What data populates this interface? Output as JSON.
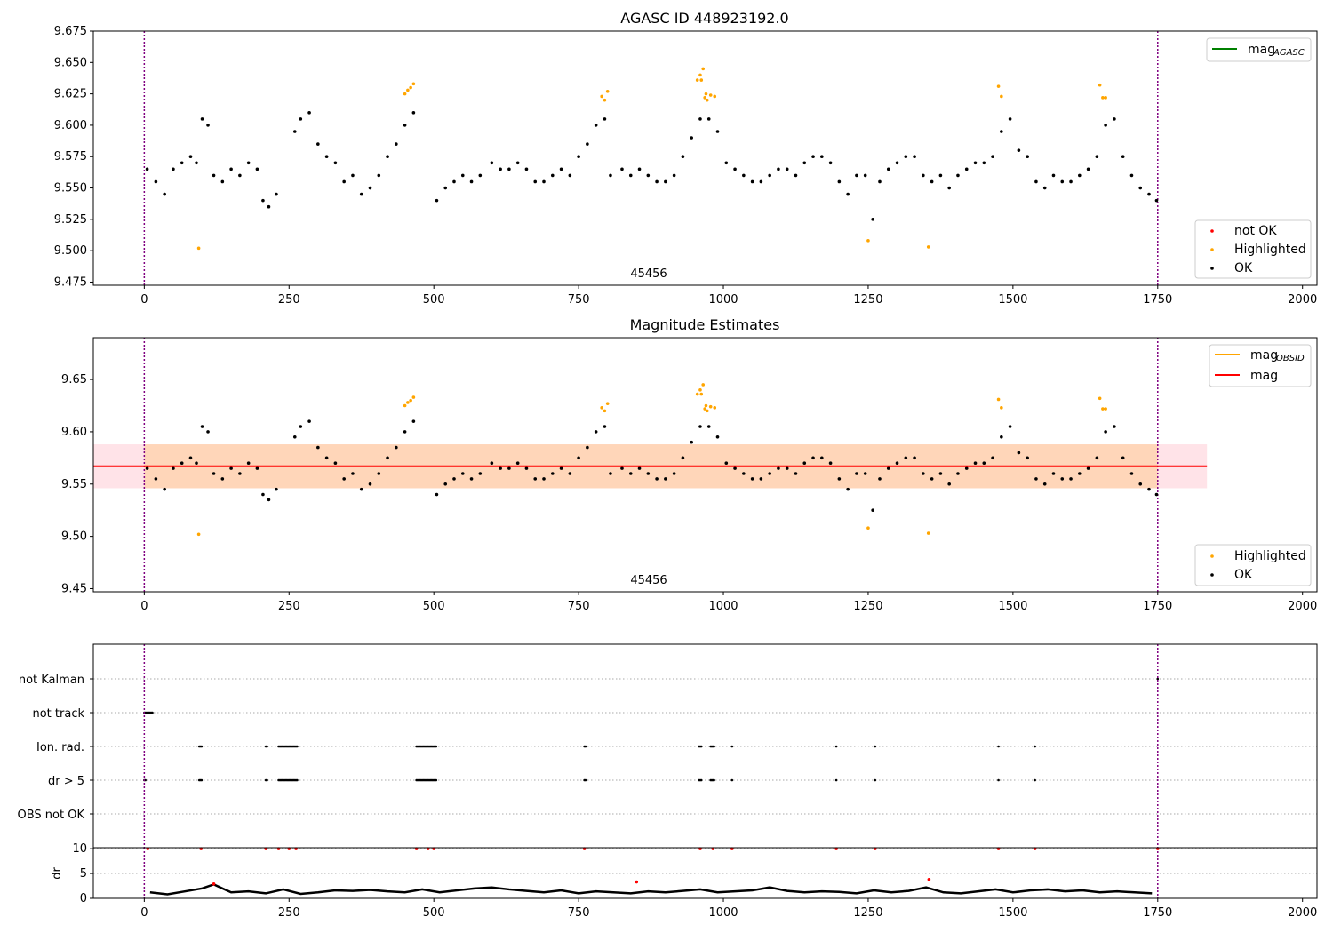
{
  "chart_data": [
    {
      "type": "scatter",
      "title": "AGASC ID 448923192.0",
      "xlim": [
        -88,
        2025
      ],
      "ylim": [
        9.4725,
        9.675
      ],
      "xticks": [
        0,
        250,
        500,
        750,
        1000,
        1250,
        1500,
        1750,
        2000
      ],
      "yticks": [
        9.475,
        9.5,
        9.525,
        9.55,
        9.575,
        9.6,
        9.625,
        9.65,
        9.675
      ],
      "ytick_labels": [
        "9.475",
        "9.500",
        "9.525",
        "9.550",
        "9.575",
        "9.600",
        "9.625",
        "9.650",
        "9.675"
      ],
      "vlines": [
        0,
        1750
      ],
      "annotation": {
        "text": "45456",
        "x": 875,
        "y": 9.48
      },
      "legend_upper": [
        {
          "label": "mag",
          "sub": "AGASC",
          "color": "#008000",
          "kind": "line"
        }
      ],
      "legend_lower": [
        {
          "label": "not OK",
          "color": "#ff0000",
          "kind": "dot"
        },
        {
          "label": "Highlighted",
          "color": "#ffa500",
          "kind": "dot"
        },
        {
          "label": "OK",
          "color": "#000000",
          "kind": "dot"
        }
      ],
      "series": [
        {
          "name": "Highlighted",
          "color": "#ffa500",
          "x": [
            94,
            450,
            455,
            460,
            465,
            790,
            795,
            800,
            955,
            960,
            962,
            965,
            968,
            970,
            972,
            978,
            985,
            1250,
            1354,
            1475,
            1480,
            1650,
            1655,
            1660
          ],
          "y": [
            9.502,
            9.625,
            9.628,
            9.63,
            9.633,
            9.623,
            9.62,
            9.627,
            9.636,
            9.64,
            9.636,
            9.645,
            9.622,
            9.625,
            9.62,
            9.624,
            9.623,
            9.508,
            9.503,
            9.631,
            9.623,
            9.632,
            9.622,
            9.622
          ]
        },
        {
          "name": "OK",
          "color": "#000000",
          "x": [
            5,
            20,
            35,
            50,
            65,
            80,
            90,
            100,
            110,
            120,
            135,
            150,
            165,
            180,
            195,
            205,
            215,
            228,
            260,
            270,
            285,
            300,
            315,
            330,
            345,
            360,
            375,
            390,
            405,
            420,
            435,
            450,
            465,
            505,
            520,
            535,
            550,
            565,
            580,
            600,
            615,
            630,
            645,
            660,
            675,
            690,
            705,
            720,
            735,
            750,
            765,
            780,
            795,
            805,
            825,
            840,
            855,
            870,
            885,
            900,
            915,
            930,
            945,
            960,
            975,
            990,
            1005,
            1020,
            1035,
            1050,
            1065,
            1080,
            1095,
            1110,
            1125,
            1140,
            1155,
            1170,
            1185,
            1200,
            1215,
            1230,
            1245,
            1258,
            1270,
            1285,
            1300,
            1315,
            1330,
            1345,
            1360,
            1375,
            1390,
            1405,
            1420,
            1435,
            1450,
            1465,
            1480,
            1495,
            1510,
            1525,
            1540,
            1555,
            1570,
            1585,
            1600,
            1615,
            1630,
            1645,
            1660,
            1675,
            1690,
            1705,
            1720,
            1735,
            1748
          ],
          "y": [
            9.565,
            9.555,
            9.545,
            9.565,
            9.57,
            9.575,
            9.57,
            9.605,
            9.6,
            9.56,
            9.555,
            9.565,
            9.56,
            9.57,
            9.565,
            9.54,
            9.535,
            9.545,
            9.595,
            9.605,
            9.61,
            9.585,
            9.575,
            9.57,
            9.555,
            9.56,
            9.545,
            9.55,
            9.56,
            9.575,
            9.585,
            9.6,
            9.61,
            9.54,
            9.55,
            9.555,
            9.56,
            9.555,
            9.56,
            9.57,
            9.565,
            9.565,
            9.57,
            9.565,
            9.555,
            9.555,
            9.56,
            9.565,
            9.56,
            9.575,
            9.585,
            9.6,
            9.605,
            9.56,
            9.565,
            9.56,
            9.565,
            9.56,
            9.555,
            9.555,
            9.56,
            9.575,
            9.59,
            9.605,
            9.605,
            9.595,
            9.57,
            9.565,
            9.56,
            9.555,
            9.555,
            9.56,
            9.565,
            9.565,
            9.56,
            9.57,
            9.575,
            9.575,
            9.57,
            9.555,
            9.545,
            9.56,
            9.56,
            9.525,
            9.555,
            9.565,
            9.57,
            9.575,
            9.575,
            9.56,
            9.555,
            9.56,
            9.55,
            9.56,
            9.565,
            9.57,
            9.57,
            9.575,
            9.595,
            9.605,
            9.58,
            9.575,
            9.555,
            9.55,
            9.56,
            9.555,
            9.555,
            9.56,
            9.565,
            9.575,
            9.6,
            9.605,
            9.575,
            9.56,
            9.55,
            9.545,
            9.54
          ]
        }
      ]
    },
    {
      "type": "scatter",
      "title": "Magnitude Estimates",
      "xlim": [
        -88,
        2025
      ],
      "ylim": [
        9.447,
        9.69
      ],
      "xticks": [
        0,
        250,
        500,
        750,
        1000,
        1250,
        1500,
        1750,
        2000
      ],
      "yticks": [
        9.45,
        9.5,
        9.55,
        9.6,
        9.65
      ],
      "ytick_labels": [
        "9.45",
        "9.50",
        "9.55",
        "9.60",
        "9.65"
      ],
      "vlines": [
        0,
        1750
      ],
      "annotation": {
        "text": "45456",
        "x": 875,
        "y": 9.455
      },
      "mag_line": {
        "y": 9.567,
        "x_range": [
          -88,
          1835
        ]
      },
      "mag_band": {
        "y_range": [
          9.546,
          9.588
        ],
        "x_range": [
          -88,
          1835
        ]
      },
      "obsid_band": {
        "y_range": [
          9.546,
          9.588
        ],
        "x_range": [
          0,
          1750
        ]
      },
      "legend_upper": [
        {
          "label": "mag",
          "sub": "OBSID",
          "color": "#ffa500",
          "kind": "line"
        },
        {
          "label": "mag",
          "sub": "",
          "color": "#ff0000",
          "kind": "line"
        }
      ],
      "legend_lower": [
        {
          "label": "Highlighted",
          "color": "#ffa500",
          "kind": "dot"
        },
        {
          "label": "OK",
          "color": "#000000",
          "kind": "dot"
        }
      ]
    },
    {
      "type": "scatter",
      "title": "",
      "xlim": [
        -88,
        2025
      ],
      "categories": [
        "not Kalman",
        "not track",
        "Ion. rad.",
        "dr > 5",
        "OBS not OK"
      ],
      "vlines": [
        0,
        1750
      ],
      "flags": {
        "not Kalman": [
          [
            1750,
            1750
          ]
        ],
        "not track": [
          [
            0,
            15
          ]
        ],
        "Ion. rad.": [
          [
            95,
            100
          ],
          [
            210,
            212
          ],
          [
            232,
            265
          ],
          [
            470,
            505
          ],
          [
            760,
            762
          ],
          [
            958,
            962
          ],
          [
            978,
            985
          ],
          [
            1015,
            1016
          ],
          [
            1195,
            1196
          ],
          [
            1262,
            1263
          ],
          [
            1475,
            1476
          ],
          [
            1538,
            1539
          ]
        ],
        "dr > 5": [
          [
            0,
            2
          ],
          [
            95,
            100
          ],
          [
            210,
            212
          ],
          [
            232,
            265
          ],
          [
            470,
            505
          ],
          [
            760,
            762
          ],
          [
            958,
            962
          ],
          [
            978,
            985
          ],
          [
            1015,
            1016
          ],
          [
            1195,
            1196
          ],
          [
            1262,
            1263
          ],
          [
            1475,
            1476
          ],
          [
            1538,
            1539
          ]
        ],
        "OBS not OK": []
      }
    },
    {
      "type": "line",
      "title": "",
      "ylabel": "dr",
      "xlim": [
        -88,
        2025
      ],
      "ylim": [
        0,
        10.2
      ],
      "xticks": [
        0,
        250,
        500,
        750,
        1000,
        1250,
        1500,
        1750,
        2000
      ],
      "yticks": [
        0,
        5,
        10
      ],
      "ytick_labels": [
        "0",
        "5",
        "10"
      ],
      "vlines": [
        0,
        1750
      ],
      "dr_x": [
        10,
        40,
        70,
        100,
        120,
        150,
        180,
        210,
        240,
        270,
        300,
        330,
        360,
        390,
        420,
        450,
        480,
        510,
        540,
        570,
        600,
        630,
        660,
        690,
        720,
        750,
        780,
        810,
        840,
        870,
        900,
        930,
        960,
        990,
        1020,
        1050,
        1080,
        1110,
        1140,
        1170,
        1200,
        1230,
        1260,
        1290,
        1320,
        1350,
        1380,
        1410,
        1440,
        1470,
        1500,
        1530,
        1560,
        1590,
        1620,
        1650,
        1680,
        1710,
        1740
      ],
      "dr_y": [
        1.2,
        0.8,
        1.4,
        2.0,
        2.8,
        1.2,
        1.4,
        1.0,
        1.8,
        0.9,
        1.2,
        1.6,
        1.5,
        1.7,
        1.4,
        1.2,
        1.8,
        1.2,
        1.6,
        2.0,
        2.2,
        1.8,
        1.5,
        1.2,
        1.6,
        1.0,
        1.4,
        1.2,
        1.0,
        1.4,
        1.2,
        1.5,
        1.8,
        1.2,
        1.4,
        1.6,
        2.2,
        1.5,
        1.2,
        1.4,
        1.3,
        1.0,
        1.6,
        1.2,
        1.5,
        2.2,
        1.2,
        1.0,
        1.4,
        1.8,
        1.2,
        1.6,
        1.8,
        1.4,
        1.6,
        1.2,
        1.4,
        1.2,
        1.0
      ],
      "dr_red": [
        [
          6,
          10
        ],
        [
          98,
          10
        ],
        [
          120,
          2.9
        ],
        [
          210,
          10
        ],
        [
          232,
          10
        ],
        [
          250,
          10
        ],
        [
          262,
          10
        ],
        [
          470,
          10
        ],
        [
          490,
          10
        ],
        [
          500,
          10
        ],
        [
          760,
          10
        ],
        [
          850,
          3.3
        ],
        [
          960,
          10
        ],
        [
          982,
          10
        ],
        [
          1015,
          10
        ],
        [
          1195,
          10
        ],
        [
          1262,
          10
        ],
        [
          1355,
          3.8
        ],
        [
          1475,
          10
        ],
        [
          1538,
          10
        ],
        [
          1750,
          10
        ]
      ]
    }
  ]
}
